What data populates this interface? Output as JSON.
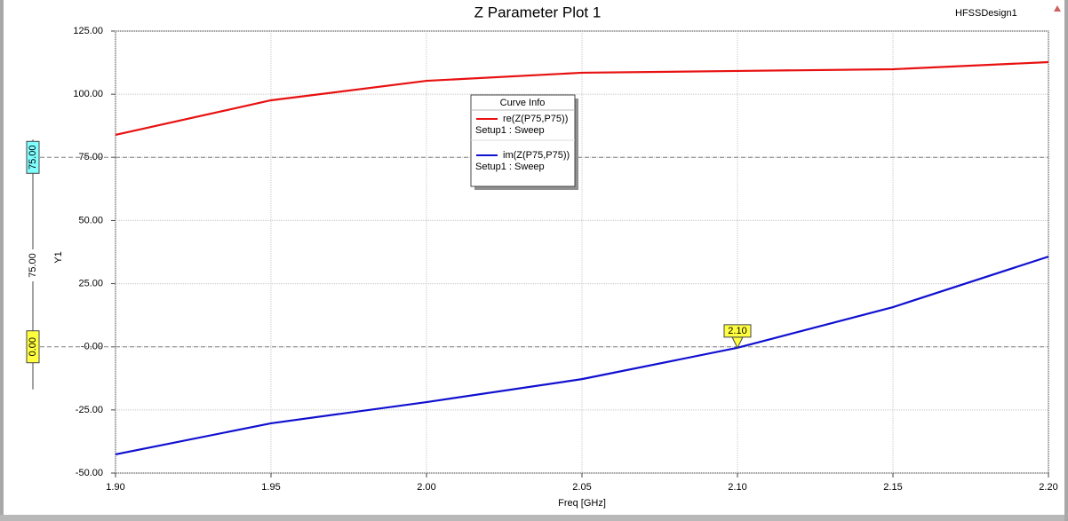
{
  "chart_data": {
    "type": "line",
    "title": "Z Parameter Plot 1",
    "design": "HFSSDesign1",
    "xlabel": "Freq [GHz]",
    "ylabel": "Y1",
    "x": [
      1.9,
      1.95,
      2.0,
      2.05,
      2.1,
      2.15,
      2.2
    ],
    "series": [
      {
        "name": "re(Z(P75,P75))",
        "source": "Setup1 : Sweep",
        "color": "#e81010",
        "values": [
          83.9,
          97.6,
          105.3,
          108.5,
          109.2,
          109.9,
          112.7
        ]
      },
      {
        "name": "im(Z(P75,P75))",
        "source": "Setup1 : Sweep",
        "color": "#1010d0",
        "values": [
          -42.6,
          -30.3,
          -21.9,
          -12.8,
          -0.4,
          15.7,
          35.7
        ]
      }
    ],
    "legend_title": "Curve Info",
    "xlim": [
      1.9,
      2.2
    ],
    "xticks": [
      {
        "value": 1.9,
        "label": "1.90"
      },
      {
        "value": 1.95,
        "label": "1.95"
      },
      {
        "value": 2.0,
        "label": "2.00"
      },
      {
        "value": 2.05,
        "label": "2.05"
      },
      {
        "value": 2.1,
        "label": "2.10"
      },
      {
        "value": 2.15,
        "label": "2.15"
      },
      {
        "value": 2.2,
        "label": "2.20"
      }
    ],
    "ylim": [
      -50,
      125
    ],
    "yticks": [
      {
        "value": -50,
        "label": "-50.00"
      },
      {
        "value": -25,
        "label": "-25.00"
      },
      {
        "value": 0,
        "label": "-0.00"
      },
      {
        "value": 25,
        "label": "25.00"
      },
      {
        "value": 50,
        "label": "50.00"
      },
      {
        "value": 75,
        "label": "75.00"
      },
      {
        "value": 100,
        "label": "100.00"
      },
      {
        "value": 125,
        "label": "125.00"
      }
    ],
    "grid": true,
    "y_markers": [
      {
        "value": 75,
        "label": "75.00"
      },
      {
        "value": 0,
        "label": "0.00"
      }
    ],
    "y_marker_delta": {
      "value": 75,
      "label": "75.00"
    },
    "x_marker": {
      "value": 2.1,
      "label": "2.10"
    }
  }
}
